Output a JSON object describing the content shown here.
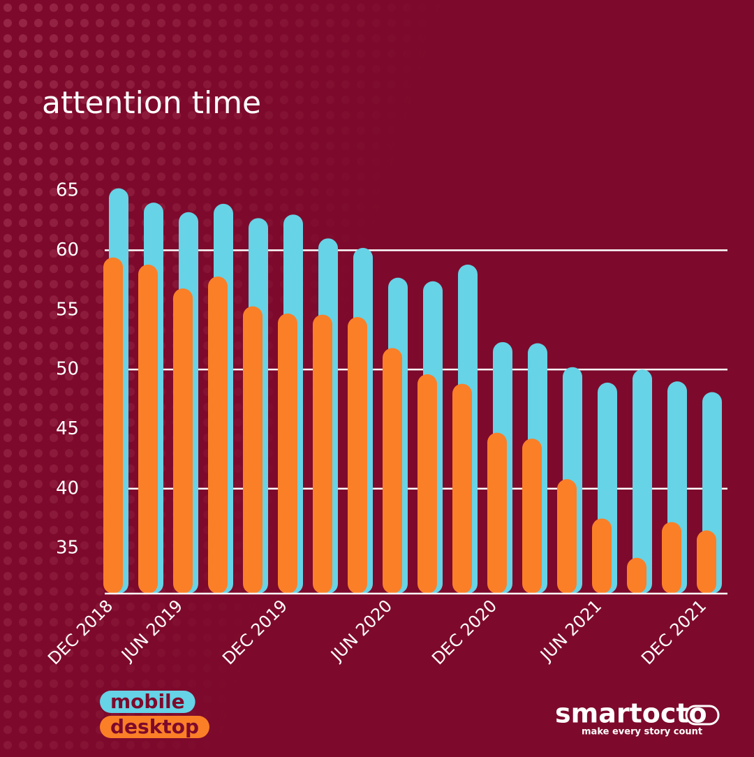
{
  "chart_data": {
    "type": "bar",
    "title": "attention time",
    "categories": [
      "DEC 2018",
      null,
      "JUN 2019",
      null,
      null,
      "DEC 2019",
      null,
      null,
      "JUN 2020",
      null,
      null,
      "DEC 2020",
      null,
      null,
      "JUN 2021",
      null,
      null,
      "DEC 2021"
    ],
    "series": [
      {
        "name": "mobile",
        "color": "#66d3e6",
        "values": [
          65.2,
          64.0,
          63.2,
          63.9,
          62.7,
          63.0,
          61.0,
          60.2,
          57.7,
          57.4,
          58.8,
          52.3,
          52.2,
          50.2,
          48.9,
          50.0,
          49.0,
          48.1
        ]
      },
      {
        "name": "desktop",
        "color": "#fb7f27",
        "values": [
          59.4,
          58.8,
          56.8,
          57.8,
          55.3,
          54.7,
          54.6,
          54.4,
          51.8,
          49.6,
          48.8,
          44.7,
          44.2,
          40.8,
          37.5,
          34.2,
          37.2,
          36.5
        ]
      }
    ],
    "ylim": [
      31.2,
      66
    ],
    "yticks": [
      35,
      40,
      45,
      50,
      55,
      60,
      65
    ],
    "grid": true,
    "legend": "bottom-left"
  },
  "brand": {
    "name": "smartocto",
    "tagline": "make every story count"
  }
}
